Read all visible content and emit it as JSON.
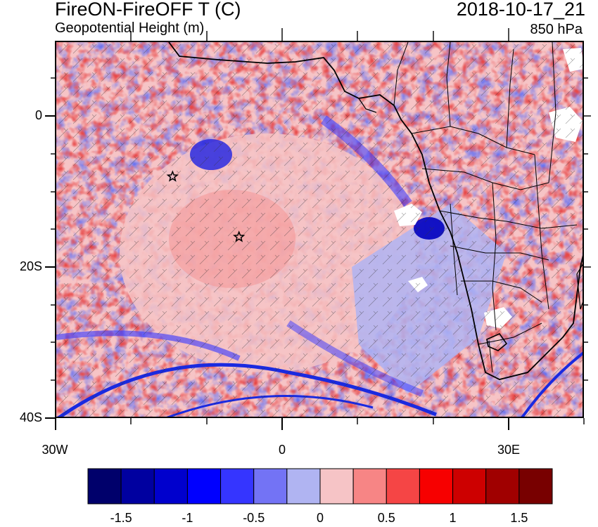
{
  "title": {
    "left": "FireON-FireOFF T (C)",
    "left_sub": "Geopotential Height (m)",
    "right": "2018-10-17_21",
    "right_sub": "850 hPa"
  },
  "axes": {
    "y_ticks": [
      "0",
      "20S",
      "40S"
    ],
    "x_ticks": [
      "30W",
      "0",
      "30E"
    ]
  },
  "colorbar": {
    "colors": [
      "#00006b",
      "#0000a0",
      "#0000cd",
      "#0000ff",
      "#3535ff",
      "#7373f5",
      "#b0b4f2",
      "#f6c4c6",
      "#f78585",
      "#f54545",
      "#f70000",
      "#cd0000",
      "#a00000",
      "#780000"
    ],
    "labels": [
      "-1.5",
      "-1",
      "-0.5",
      "0",
      "0.5",
      "1",
      "1.5"
    ]
  },
  "markers": [
    {
      "name": "star-marker-1",
      "lon": -14.5,
      "lat": -8
    },
    {
      "name": "star-marker-2",
      "lon": -5.7,
      "lat": -16
    }
  ],
  "map": {
    "lon_range": [
      -30,
      40
    ],
    "lat_range": [
      -40,
      10
    ]
  }
}
